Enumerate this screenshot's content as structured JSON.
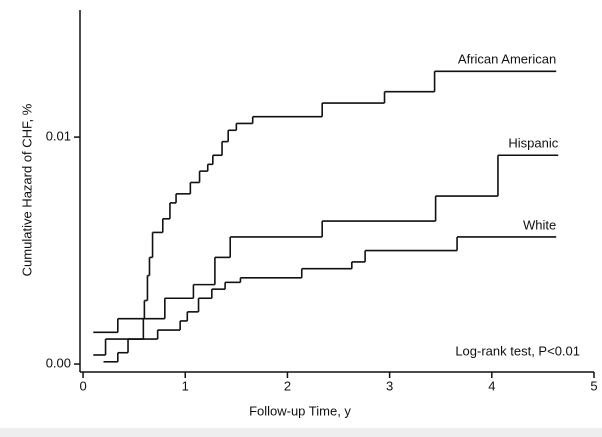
{
  "chart_data": {
    "type": "step",
    "xlabel": "Follow-up Time, y",
    "ylabel": "Cumulative Hazard of CHF, %",
    "annotation": "Log-rank test, P<0.01",
    "xlim": [
      -0.03,
      5
    ],
    "ylim": [
      -0.00035,
      0.0156
    ],
    "xticks": [
      0,
      1,
      2,
      3,
      4,
      5
    ],
    "yticks": [
      {
        "value": 0,
        "label": "0.00"
      },
      0.01
    ],
    "series": [
      {
        "name": "African American",
        "color": "#111111",
        "x": [
          0.1,
          0.34,
          0.6,
          0.63,
          0.65,
          0.68,
          0.78,
          0.85,
          0.91,
          1.05,
          1.14,
          1.22,
          1.27,
          1.36,
          1.42,
          1.5,
          1.66,
          2.34,
          2.95,
          3.44,
          4.63
        ],
        "values": [
          0.0014,
          0.002,
          0.0028,
          0.0039,
          0.0047,
          0.0058,
          0.0064,
          0.0071,
          0.0075,
          0.008,
          0.0085,
          0.0088,
          0.0092,
          0.0098,
          0.0103,
          0.0106,
          0.0109,
          0.0115,
          0.012,
          0.0129,
          0.0129
        ]
      },
      {
        "name": "Hispanic",
        "color": "#111111",
        "x": [
          0.1,
          0.22,
          0.59,
          0.8,
          1.08,
          1.29,
          1.44,
          2.34,
          3.45,
          4.06,
          4.65
        ],
        "values": [
          0.0004,
          0.0011,
          0.002,
          0.0029,
          0.0035,
          0.0047,
          0.0056,
          0.0063,
          0.0074,
          0.0092,
          0.0092
        ]
      },
      {
        "name": "White",
        "color": "#111111",
        "x": [
          0.2,
          0.34,
          0.44,
          0.73,
          0.95,
          1.02,
          1.13,
          1.26,
          1.39,
          1.54,
          2.14,
          2.63,
          2.76,
          3.66,
          4.63
        ],
        "values": [
          0.0001,
          0.0005,
          0.0011,
          0.0015,
          0.0019,
          0.0023,
          0.0029,
          0.0033,
          0.0036,
          0.0038,
          0.0042,
          0.0045,
          0.005,
          0.0056,
          0.0056
        ]
      }
    ]
  }
}
